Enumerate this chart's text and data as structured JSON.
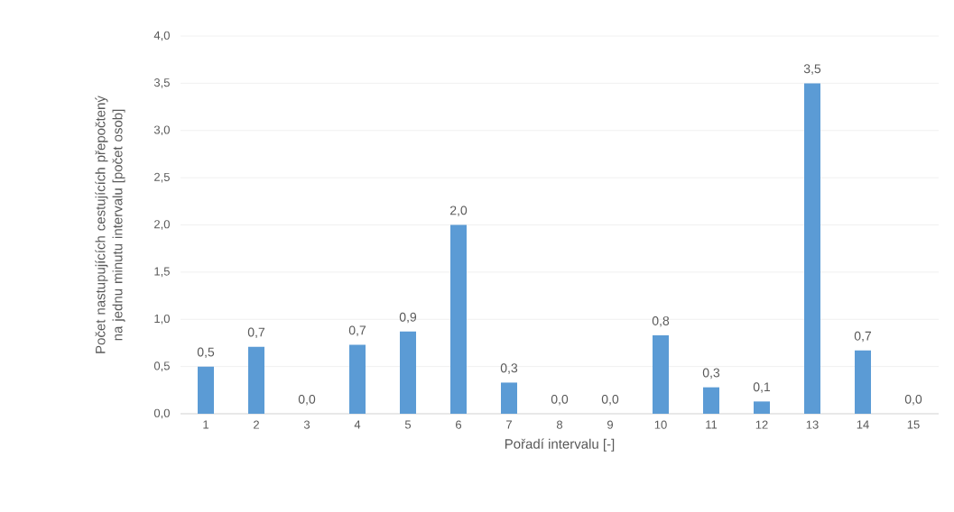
{
  "chart_data": {
    "type": "bar",
    "xlabel": "Pořadí intervalu [-]",
    "ylabel": "Počet nastupujících cestujících přepočtený na jednu minutu intervalu [počet osob]",
    "categories": [
      "1",
      "2",
      "3",
      "4",
      "5",
      "6",
      "7",
      "8",
      "9",
      "10",
      "11",
      "12",
      "13",
      "14",
      "15"
    ],
    "values": [
      0.5,
      0.71,
      0,
      0.73,
      0.87,
      2.0,
      0.33,
      0,
      0,
      0.83,
      0.28,
      0.13,
      3.5,
      0.67,
      0
    ],
    "value_labels": [
      "0,5",
      "0,7",
      "0,0",
      "0,7",
      "0,9",
      "2,0",
      "0,3",
      "0,0",
      "0,0",
      "0,8",
      "0,3",
      "0,1",
      "3,5",
      "0,7",
      "0,0"
    ],
    "color": "#5b9bd5",
    "ylim": [
      0,
      4
    ],
    "yticks": [
      {
        "value": 0,
        "label": "0,0"
      },
      {
        "value": 0.5,
        "label": "0,5"
      },
      {
        "value": 1,
        "label": "1,0"
      },
      {
        "value": 1.5,
        "label": "1,5"
      },
      {
        "value": 2,
        "label": "2,0"
      },
      {
        "value": 2.5,
        "label": "2,5"
      },
      {
        "value": 3,
        "label": "3,0"
      },
      {
        "value": 3.5,
        "label": "3,5"
      },
      {
        "value": 4,
        "label": "4,0"
      }
    ],
    "grid": "y"
  }
}
